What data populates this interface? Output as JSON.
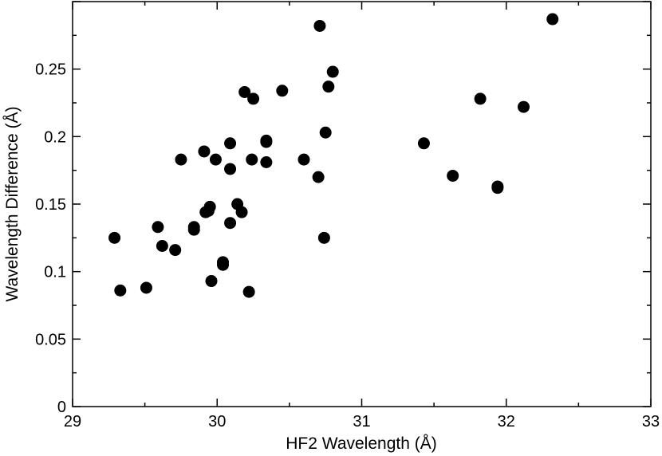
{
  "chart_data": {
    "type": "scatter",
    "title": "",
    "xlabel": "HF2 Wavelength (Å)",
    "ylabel": "Wavelength Difference (Å)",
    "xlim": [
      29,
      33
    ],
    "ylim": [
      0,
      0.3
    ],
    "x_ticks": [
      "29",
      "30",
      "31",
      "32",
      "33"
    ],
    "y_ticks": [
      "0",
      "0.05",
      "0.1",
      "0.15",
      "0.2",
      "0.25"
    ],
    "grid": false,
    "legend": "none",
    "marker_color": "#000000",
    "series": [
      {
        "x": [
          29.29,
          29.33,
          29.51,
          29.59,
          29.62,
          29.71,
          29.75,
          29.84,
          29.84,
          29.91,
          29.92,
          29.94,
          29.95,
          29.96,
          29.99,
          30.04,
          30.04,
          30.09,
          30.09,
          30.09,
          30.14,
          30.17,
          30.19,
          30.22,
          30.24,
          30.25,
          30.34,
          30.34,
          30.34,
          30.45,
          30.6,
          30.7,
          30.71,
          30.74,
          30.75,
          30.77,
          30.8,
          31.43,
          31.63,
          31.82,
          31.94,
          31.94,
          32.12,
          32.32
        ],
        "y": [
          0.125,
          0.086,
          0.088,
          0.133,
          0.119,
          0.116,
          0.183,
          0.131,
          0.133,
          0.189,
          0.144,
          0.145,
          0.148,
          0.093,
          0.183,
          0.105,
          0.107,
          0.195,
          0.176,
          0.136,
          0.15,
          0.144,
          0.233,
          0.085,
          0.183,
          0.228,
          0.197,
          0.196,
          0.181,
          0.234,
          0.183,
          0.17,
          0.282,
          0.125,
          0.203,
          0.237,
          0.248,
          0.195,
          0.171,
          0.228,
          0.163,
          0.162,
          0.222,
          0.287
        ]
      }
    ]
  }
}
